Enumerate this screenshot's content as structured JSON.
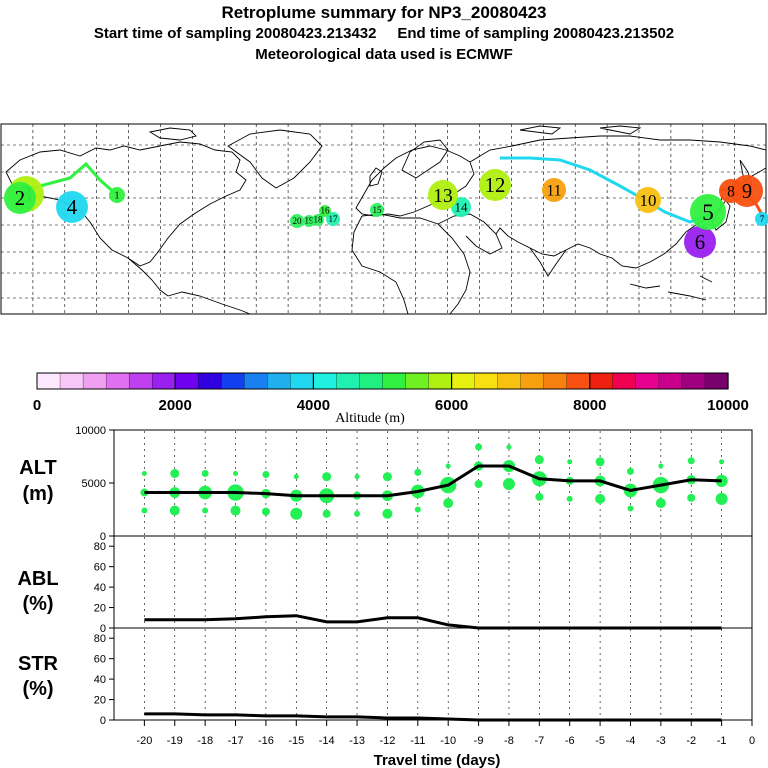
{
  "header": {
    "title": "Retroplume summary for NP3_20080423",
    "start_label": "Start time of sampling 20080423.213432",
    "end_label": "End time of sampling 20080423.213502",
    "met_label": "Meteorological data used is ECMWF"
  },
  "colorbar": {
    "label": "Altitude (m)",
    "tick_labels": [
      "0",
      "2000",
      "4000",
      "6000",
      "8000",
      "10000"
    ],
    "colors": [
      "#fde8fd",
      "#f8c8f8",
      "#f0a0f0",
      "#e070f0",
      "#c040f0",
      "#9a20f0",
      "#7000f0",
      "#3000e0",
      "#1040f0",
      "#1880f0",
      "#20b0f0",
      "#20d8f0",
      "#20f0e0",
      "#20f0b0",
      "#20f080",
      "#30f040",
      "#70f020",
      "#b0f010",
      "#e8f010",
      "#f8e010",
      "#f8c010",
      "#f8a010",
      "#f88010",
      "#f85010",
      "#f02010",
      "#f00050",
      "#e80090",
      "#c8008c",
      "#a00080",
      "#78006c"
    ]
  },
  "map_labels": [
    {
      "n": "20",
      "c": "#30f060"
    },
    {
      "n": "19",
      "c": "#30f060"
    },
    {
      "n": "18",
      "c": "#30f060"
    },
    {
      "n": "17",
      "c": "#20f0b0"
    },
    {
      "n": "16",
      "c": "#30f040"
    },
    {
      "n": "15",
      "c": "#30f060"
    },
    {
      "n": "14",
      "c": "#20f0b0"
    },
    {
      "n": "13",
      "c": "#b0f010"
    },
    {
      "n": "12",
      "c": "#b0f010"
    },
    {
      "n": "11",
      "c": "#f8a010"
    },
    {
      "n": "10",
      "c": "#f8c010"
    },
    {
      "n": "9",
      "c": "#f85010"
    },
    {
      "n": "8",
      "c": "#f85010"
    },
    {
      "n": "7",
      "c": "#20d8f0"
    },
    {
      "n": "6",
      "c": "#9a20f0"
    },
    {
      "n": "5",
      "c": "#30f040"
    },
    {
      "n": "4",
      "c": "#20d8f0"
    },
    {
      "n": "3",
      "c": "#b0f010"
    },
    {
      "n": "2",
      "c": "#30f040"
    },
    {
      "n": "1",
      "c": "#30f040"
    }
  ],
  "panels": {
    "alt": {
      "label_top": "ALT",
      "label_bottom": "(m)",
      "y_ticks": [
        "0",
        "5000",
        "10000"
      ]
    },
    "abl": {
      "label_top": "ABL",
      "label_bottom": "(%)",
      "y_ticks": [
        "0",
        "20",
        "40",
        "60",
        "80"
      ]
    },
    "str": {
      "label_top": "STR",
      "label_bottom": "(%)",
      "y_ticks": [
        "0",
        "20",
        "40",
        "60",
        "80"
      ]
    }
  },
  "chart_data": [
    {
      "type": "line",
      "title": "ALT",
      "ylabel": "(m)",
      "x": [
        -20,
        -19,
        -18,
        -17,
        -16,
        -15,
        -14,
        -13,
        -12,
        -11,
        -10,
        -9,
        -8,
        -7,
        -6,
        -5,
        -4,
        -3,
        -2,
        -1
      ],
      "values": [
        4100,
        4100,
        4100,
        4100,
        4000,
        3800,
        3800,
        3800,
        3800,
        4200,
        4800,
        6600,
        6600,
        5400,
        5200,
        5200,
        4300,
        4800,
        5300,
        5200
      ],
      "ylim": [
        0,
        10000
      ]
    },
    {
      "type": "line",
      "title": "ABL",
      "ylabel": "(%)",
      "x": [
        -20,
        -19,
        -18,
        -17,
        -16,
        -15,
        -14,
        -13,
        -12,
        -11,
        -10,
        -9,
        -8,
        -7,
        -6,
        -5,
        -4,
        -3,
        -2,
        -1
      ],
      "values": [
        8,
        8,
        8,
        9,
        11,
        12,
        6,
        6,
        10,
        10,
        3,
        0,
        0,
        0,
        0,
        0,
        0,
        0,
        0,
        0
      ],
      "ylim": [
        0,
        90
      ]
    },
    {
      "type": "line",
      "title": "STR",
      "ylabel": "(%)",
      "x": [
        -20,
        -19,
        -18,
        -17,
        -16,
        -15,
        -14,
        -13,
        -12,
        -11,
        -10,
        -9,
        -8,
        -7,
        -6,
        -5,
        -4,
        -3,
        -2,
        -1
      ],
      "values": [
        6,
        6,
        5,
        5,
        4,
        4,
        3,
        3,
        2,
        2,
        1,
        0,
        0,
        0,
        0,
        0,
        0,
        0,
        0,
        0
      ],
      "ylim": [
        0,
        90
      ]
    }
  ],
  "x_axis": {
    "label": "Travel time (days)",
    "tick_labels": [
      "-20",
      "-19",
      "-18",
      "-17",
      "-16",
      "-15",
      "-14",
      "-13",
      "-12",
      "-11",
      "-10",
      "-9",
      "-8",
      "-7",
      "-6",
      "-5",
      "-4",
      "-3",
      "-2",
      "-1",
      "0"
    ]
  }
}
